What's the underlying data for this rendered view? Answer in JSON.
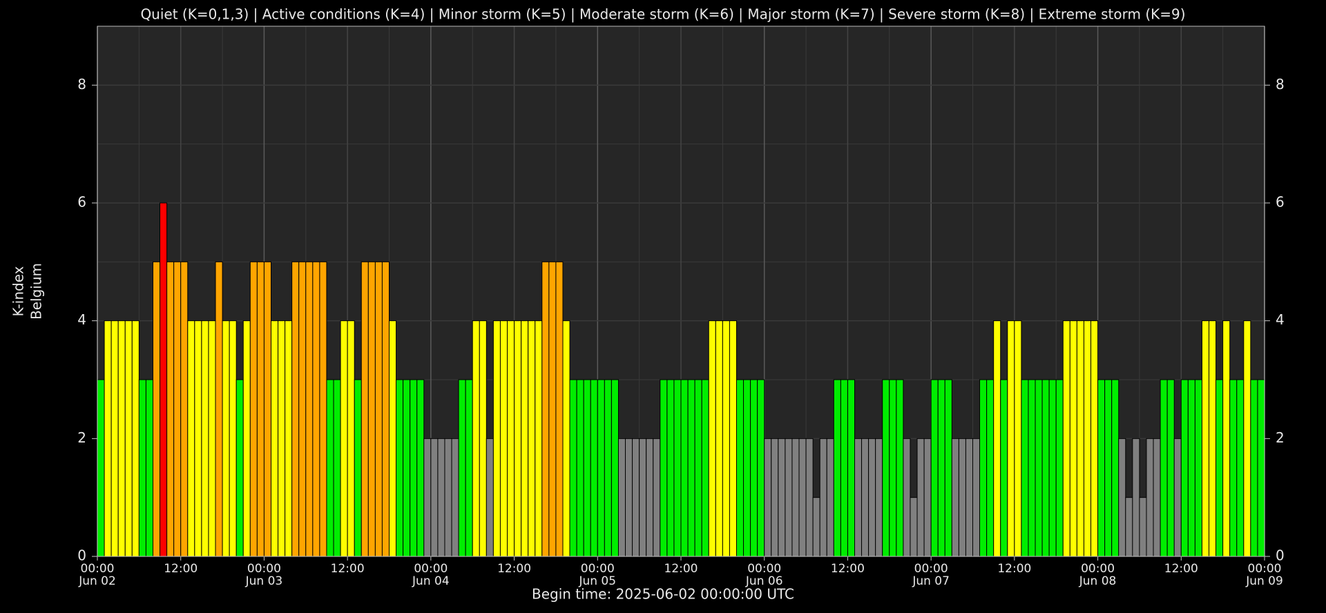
{
  "chart_data": {
    "type": "bar",
    "title": "Quiet (K=0,1,3) | Active conditions (K=4) | Minor storm (K=5) | Moderate storm (K=6) | Major storm (K=7) | Severe storm (K=8) | Extreme storm (K=9)",
    "y_label": [
      "K-index",
      "Belgium"
    ],
    "x_label": "Begin time: 2025-06-02 00:00:00 UTC",
    "values": [
      3,
      4,
      4,
      4,
      4,
      4,
      3,
      3,
      5,
      6,
      5,
      5,
      5,
      4,
      4,
      4,
      4,
      5,
      4,
      4,
      3,
      4,
      5,
      5,
      5,
      4,
      4,
      4,
      5,
      5,
      5,
      5,
      5,
      3,
      3,
      4,
      4,
      3,
      5,
      5,
      5,
      5,
      4,
      3,
      3,
      3,
      3,
      2,
      2,
      2,
      2,
      2,
      3,
      3,
      4,
      4,
      2,
      4,
      4,
      4,
      4,
      4,
      4,
      4,
      5,
      5,
      5,
      4,
      3,
      3,
      3,
      3,
      3,
      3,
      3,
      2,
      2,
      2,
      2,
      2,
      2,
      3,
      3,
      3,
      3,
      3,
      3,
      3,
      4,
      4,
      4,
      4,
      3,
      3,
      3,
      3,
      2,
      2,
      2,
      2,
      2,
      2,
      2,
      1,
      2,
      2,
      3,
      3,
      3,
      2,
      2,
      2,
      2,
      3,
      3,
      3,
      2,
      1,
      2,
      2,
      3,
      3,
      3,
      2,
      2,
      2,
      2,
      3,
      3,
      4,
      3,
      4,
      4,
      3,
      3,
      3,
      3,
      3,
      3,
      4,
      4,
      4,
      4,
      4,
      3,
      3,
      3,
      2,
      1,
      2,
      1,
      2,
      2,
      3,
      3,
      2,
      3,
      3,
      3,
      4,
      4,
      3,
      4,
      3,
      3,
      4,
      3,
      3
    ],
    "level_colors": [
      "#808080",
      "#808080",
      "#808080",
      "#00ee00",
      "#ffff00",
      "#ffa500",
      "#ff0000"
    ],
    "xlim": [
      0,
      168
    ],
    "xticks": [
      {
        "value": 0,
        "label": "00:00 Jun 02"
      },
      {
        "value": 12,
        "label": "12:00"
      },
      {
        "value": 24,
        "label": "00:00 Jun 03"
      },
      {
        "value": 36,
        "label": "12:00"
      },
      {
        "value": 48,
        "label": "00:00 Jun 04"
      },
      {
        "value": 60,
        "label": "12:00"
      },
      {
        "value": 72,
        "label": "00:00 Jun 05"
      },
      {
        "value": 84,
        "label": "12:00"
      },
      {
        "value": 96,
        "label": "00:00 Jun 06"
      },
      {
        "value": 108,
        "label": "12:00"
      },
      {
        "value": 120,
        "label": "00:00 Jun 07"
      },
      {
        "value": 132,
        "label": "12:00"
      },
      {
        "value": 144,
        "label": "00:00 Jun 08"
      },
      {
        "value": 156,
        "label": "12:00"
      },
      {
        "value": 168,
        "label": "00:00 Jun 09"
      }
    ],
    "ylim": [
      0,
      9
    ],
    "yticks": [
      0,
      2,
      4,
      6,
      8
    ],
    "grid": true
  }
}
